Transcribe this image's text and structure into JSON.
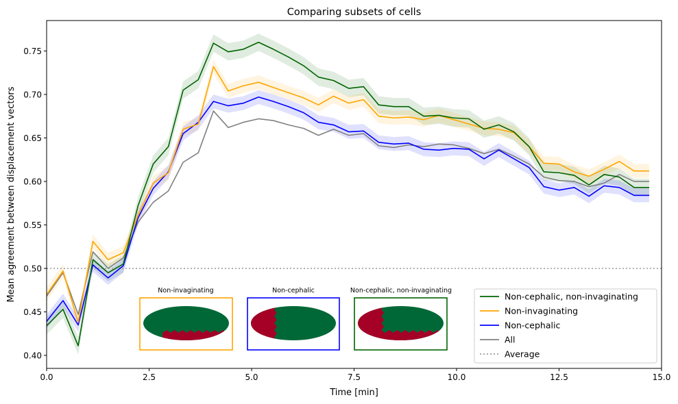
{
  "chart_data": {
    "type": "line",
    "title": "Comparing subsets of cells",
    "xlabel": "Time [min]",
    "ylabel": "Mean agreement between displacement vectors",
    "xlim": [
      0,
      15
    ],
    "ylim": [
      0.385,
      0.785
    ],
    "x_ticks": [
      0,
      2.5,
      5,
      7.5,
      10,
      12.5,
      15
    ],
    "x_tick_labels": [
      "0.0",
      "2.5",
      "5.0",
      "7.5",
      "10.0",
      "12.5",
      "15.0"
    ],
    "y_ticks": [
      0.4,
      0.45,
      0.5,
      0.55,
      0.6,
      0.65,
      0.7,
      0.75
    ],
    "y_tick_labels": [
      "0.40",
      "0.45",
      "0.50",
      "0.55",
      "0.60",
      "0.65",
      "0.70",
      "0.75"
    ],
    "grid": false,
    "legend_position": "lower-right",
    "x": [
      0.0,
      0.4,
      0.77,
      1.13,
      1.5,
      1.87,
      2.23,
      2.6,
      2.97,
      3.33,
      3.7,
      4.07,
      4.43,
      4.8,
      5.17,
      5.53,
      5.9,
      6.27,
      6.63,
      7.0,
      7.37,
      7.73,
      8.1,
      8.47,
      8.83,
      9.2,
      9.57,
      9.93,
      10.3,
      10.67,
      11.03,
      11.4,
      11.77,
      12.13,
      12.5,
      12.87,
      13.23,
      13.6,
      13.97,
      14.33,
      14.7
    ],
    "series": [
      {
        "name": "Non-cephalic, non-invaginating",
        "color": "#006400",
        "band_width": 0.01,
        "values": [
          0.434,
          0.453,
          0.411,
          0.51,
          0.495,
          0.505,
          0.572,
          0.62,
          0.64,
          0.705,
          0.717,
          0.759,
          0.749,
          0.752,
          0.76,
          0.752,
          0.743,
          0.733,
          0.72,
          0.716,
          0.707,
          0.709,
          0.688,
          0.686,
          0.686,
          0.675,
          0.676,
          0.673,
          0.672,
          0.66,
          0.665,
          0.657,
          0.64,
          0.611,
          0.61,
          0.607,
          0.596,
          0.608,
          0.605,
          0.593,
          0.593
        ]
      },
      {
        "name": "Non-invaginating",
        "color": "#ffa500",
        "band_width": 0.008,
        "values": [
          0.47,
          0.497,
          0.438,
          0.531,
          0.51,
          0.518,
          0.561,
          0.598,
          0.61,
          0.66,
          0.666,
          0.732,
          0.704,
          0.71,
          0.714,
          0.708,
          0.702,
          0.696,
          0.688,
          0.698,
          0.69,
          0.694,
          0.675,
          0.673,
          0.674,
          0.671,
          0.676,
          0.671,
          0.666,
          0.661,
          0.66,
          0.656,
          0.64,
          0.621,
          0.62,
          0.611,
          0.606,
          0.614,
          0.623,
          0.612,
          0.612
        ]
      },
      {
        "name": "Non-cephalic",
        "color": "#0000ff",
        "band_width": 0.008,
        "values": [
          0.439,
          0.463,
          0.435,
          0.504,
          0.489,
          0.503,
          0.558,
          0.592,
          0.611,
          0.655,
          0.668,
          0.692,
          0.687,
          0.69,
          0.697,
          0.692,
          0.686,
          0.679,
          0.668,
          0.665,
          0.657,
          0.658,
          0.645,
          0.643,
          0.644,
          0.637,
          0.636,
          0.638,
          0.637,
          0.626,
          0.636,
          0.626,
          0.616,
          0.594,
          0.59,
          0.593,
          0.583,
          0.595,
          0.593,
          0.584,
          0.584
        ]
      },
      {
        "name": "All",
        "color": "#808080",
        "band_width": 0.0,
        "values": [
          0.468,
          0.495,
          0.447,
          0.519,
          0.5,
          0.512,
          0.553,
          0.576,
          0.589,
          0.622,
          0.633,
          0.681,
          0.662,
          0.668,
          0.672,
          0.67,
          0.665,
          0.661,
          0.653,
          0.66,
          0.653,
          0.655,
          0.641,
          0.639,
          0.642,
          0.64,
          0.643,
          0.642,
          0.638,
          0.632,
          0.637,
          0.629,
          0.62,
          0.605,
          0.601,
          0.6,
          0.594,
          0.598,
          0.608,
          0.6,
          0.6
        ]
      }
    ],
    "reference_line": {
      "label": "Average",
      "y": 0.5,
      "color": "#999999"
    },
    "insets": [
      {
        "label": "Non-invaginating",
        "border_color": "#ffa500",
        "split": "bottom"
      },
      {
        "label": "Non-cephalic",
        "border_color": "#0000ff",
        "split": "left"
      },
      {
        "label": "Non-cephalic, non-invaginating",
        "border_color": "#006400",
        "split": "both"
      }
    ],
    "inset_colors": {
      "green": "#006837",
      "red": "#a50026"
    }
  }
}
